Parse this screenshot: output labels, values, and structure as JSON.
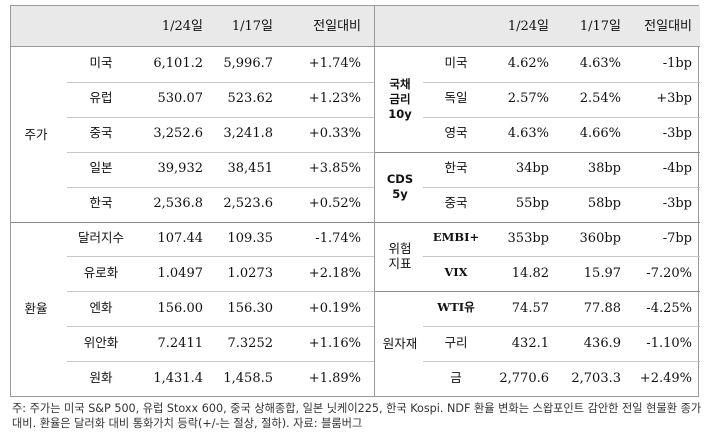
{
  "left": {
    "headers": [
      "1/24일",
      "1/17일",
      "전일대비"
    ],
    "groups": [
      {
        "label": "주가",
        "rows": [
          {
            "name": "미국",
            "v1": "6,101.2",
            "v2": "5,996.7",
            "chg": "+1.74%"
          },
          {
            "name": "유럽",
            "v1": "530.07",
            "v2": "523.62",
            "chg": "+1.23%"
          },
          {
            "name": "중국",
            "v1": "3,252.6",
            "v2": "3,241.8",
            "chg": "+0.33%"
          },
          {
            "name": "일본",
            "v1": "39,932",
            "v2": "38,451",
            "chg": "+3.85%"
          },
          {
            "name": "한국",
            "v1": "2,536.8",
            "v2": "2,523.6",
            "chg": "+0.52%"
          }
        ]
      },
      {
        "label": "환율",
        "rows": [
          {
            "name": "달러지수",
            "v1": "107.44",
            "v2": "109.35",
            "chg": "-1.74%"
          },
          {
            "name": "유로화",
            "v1": "1.0497",
            "v2": "1.0273",
            "chg": "+2.18%"
          },
          {
            "name": "엔화",
            "v1": "156.00",
            "v2": "156.30",
            "chg": "+0.19%"
          },
          {
            "name": "위안화",
            "v1": "7.2411",
            "v2": "7.3252",
            "chg": "+1.16%"
          },
          {
            "name": "원화",
            "v1": "1,431.4",
            "v2": "1,458.5",
            "chg": "+1.89%"
          }
        ]
      }
    ]
  },
  "right": {
    "headers": [
      "1/24일",
      "1/17일",
      "전일대비"
    ],
    "groups": [
      {
        "label": "국채\n금리\n10y",
        "rows": [
          {
            "name": "미국",
            "v1": "4.62%",
            "v2": "4.63%",
            "chg": "-1bp"
          },
          {
            "name": "독일",
            "v1": "2.57%",
            "v2": "2.54%",
            "chg": "+3bp"
          },
          {
            "name": "영국",
            "v1": "4.63%",
            "v2": "4.66%",
            "chg": "-3bp"
          }
        ]
      },
      {
        "label": "CDS\n5y",
        "rows": [
          {
            "name": "한국",
            "v1": "34bp",
            "v2": "38bp",
            "chg": "-4bp"
          },
          {
            "name": "중국",
            "v1": "55bp",
            "v2": "58bp",
            "chg": "-3bp"
          }
        ]
      },
      {
        "label": "위험\n지표",
        "rows": [
          {
            "name": "EMBI+",
            "v1": "353bp",
            "v2": "360bp",
            "chg": "-7bp"
          },
          {
            "name": "VIX",
            "v1": "14.82",
            "v2": "15.97",
            "chg": "-7.20%"
          }
        ]
      },
      {
        "label": "원자재",
        "rows": [
          {
            "name": "WTI유",
            "v1": "74.57",
            "v2": "77.88",
            "chg": "-4.25%"
          },
          {
            "name": "구리",
            "v1": "432.1",
            "v2": "436.9",
            "chg": "-1.10%"
          },
          {
            "name": "금",
            "v1": "2,770.6",
            "v2": "2,703.3",
            "chg": "+2.49%"
          }
        ]
      }
    ]
  },
  "note": "주: 주가는 미국 S&P 500, 유럽 Stoxx 600, 중국 상해종합, 일본 닛케이225, 한국 Kospi. NDF 환율 변화는 스왑포인트 감안한 전일 현물환 종가 대비. 환율은 달러화 대비 통화가치 등락(+/-는 절상, 절하). 자료: 블룸버그"
}
